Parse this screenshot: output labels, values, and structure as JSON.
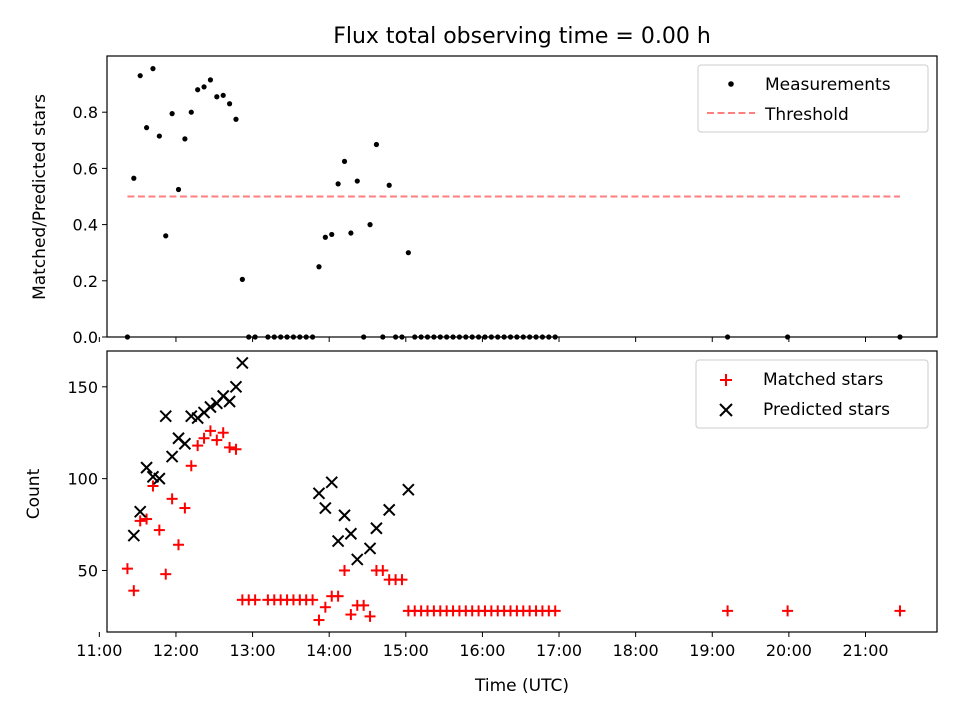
{
  "figure": {
    "title": "Flux total observing time = 0.00 h",
    "xlabel": "Time (UTC)"
  },
  "chart_data": [
    {
      "type": "scatter",
      "ylabel": "Matched/Predicted stars",
      "xlim": [
        "11:06",
        "21:56"
      ],
      "ylim": [
        0,
        1.0
      ],
      "yticks": [
        0.0,
        0.2,
        0.4,
        0.6,
        0.8
      ],
      "ytick_labels": [
        "0.0",
        "0.2",
        "0.4",
        "0.6",
        "0.8"
      ],
      "legend": {
        "position": "top-right",
        "entries": [
          "Measurements",
          "Threshold"
        ]
      },
      "series": [
        {
          "name": "Measurements",
          "color": "#000000",
          "marker": "dot",
          "points": [
            [
              "11:22",
              0.0
            ],
            [
              "11:27",
              0.565
            ],
            [
              "11:32",
              0.93
            ],
            [
              "11:37",
              0.745
            ],
            [
              "11:42",
              0.955
            ],
            [
              "11:47",
              0.715
            ],
            [
              "11:52",
              0.36
            ],
            [
              "11:57",
              0.795
            ],
            [
              "12:02",
              0.525
            ],
            [
              "12:07",
              0.705
            ],
            [
              "12:12",
              0.8
            ],
            [
              "12:17",
              0.88
            ],
            [
              "12:22",
              0.89
            ],
            [
              "12:27",
              0.915
            ],
            [
              "12:32",
              0.855
            ],
            [
              "12:37",
              0.86
            ],
            [
              "12:42",
              0.83
            ],
            [
              "12:47",
              0.775
            ],
            [
              "12:52",
              0.205
            ],
            [
              "12:57",
              0.0
            ],
            [
              "13:02",
              0.0
            ],
            [
              "13:12",
              0.0
            ],
            [
              "13:17",
              0.0
            ],
            [
              "13:22",
              0.0
            ],
            [
              "13:27",
              0.0
            ],
            [
              "13:32",
              0.0
            ],
            [
              "13:37",
              0.0
            ],
            [
              "13:42",
              0.0
            ],
            [
              "13:47",
              0.0
            ],
            [
              "13:52",
              0.25
            ],
            [
              "13:57",
              0.355
            ],
            [
              "14:02",
              0.365
            ],
            [
              "14:07",
              0.545
            ],
            [
              "14:12",
              0.625
            ],
            [
              "14:17",
              0.37
            ],
            [
              "14:22",
              0.555
            ],
            [
              "14:27",
              0.0
            ],
            [
              "14:32",
              0.4
            ],
            [
              "14:37",
              0.685
            ],
            [
              "14:42",
              0.0
            ],
            [
              "14:47",
              0.54
            ],
            [
              "14:52",
              0.0
            ],
            [
              "14:57",
              0.0
            ],
            [
              "15:02",
              0.3
            ],
            [
              "15:07",
              0.0
            ],
            [
              "15:12",
              0.0
            ],
            [
              "15:17",
              0.0
            ],
            [
              "15:22",
              0.0
            ],
            [
              "15:27",
              0.0
            ],
            [
              "15:32",
              0.0
            ],
            [
              "15:37",
              0.0
            ],
            [
              "15:42",
              0.0
            ],
            [
              "15:47",
              0.0
            ],
            [
              "15:52",
              0.0
            ],
            [
              "15:57",
              0.0
            ],
            [
              "16:02",
              0.0
            ],
            [
              "16:07",
              0.0
            ],
            [
              "16:12",
              0.0
            ],
            [
              "16:17",
              0.0
            ],
            [
              "16:22",
              0.0
            ],
            [
              "16:27",
              0.0
            ],
            [
              "16:32",
              0.0
            ],
            [
              "16:37",
              0.0
            ],
            [
              "16:42",
              0.0
            ],
            [
              "16:47",
              0.0
            ],
            [
              "16:52",
              0.0
            ],
            [
              "16:57",
              0.0
            ],
            [
              "19:12",
              0.0
            ],
            [
              "19:59",
              0.0
            ],
            [
              "21:27",
              0.0
            ]
          ]
        },
        {
          "name": "Threshold",
          "type": "line",
          "color": "#ff7f7f",
          "dash": "dashed",
          "points": [
            [
              "11:22",
              0.5
            ],
            [
              "21:27",
              0.5
            ]
          ]
        }
      ]
    },
    {
      "type": "scatter",
      "ylabel": "Count",
      "xlim": [
        "11:06",
        "21:56"
      ],
      "ylim": [
        16.5,
        169.5
      ],
      "yticks": [
        50,
        100,
        150
      ],
      "ytick_labels": [
        "50",
        "100",
        "150"
      ],
      "xticks": [
        "11:00",
        "12:00",
        "13:00",
        "14:00",
        "15:00",
        "16:00",
        "17:00",
        "18:00",
        "19:00",
        "20:00",
        "21:00"
      ],
      "legend": {
        "position": "top-right",
        "entries": [
          "Matched stars",
          "Predicted stars"
        ]
      },
      "series": [
        {
          "name": "Matched stars",
          "color": "#ff0000",
          "marker": "plus",
          "points": [
            [
              "11:22",
              51
            ],
            [
              "11:27",
              39
            ],
            [
              "11:32",
              77
            ],
            [
              "11:37",
              78
            ],
            [
              "11:42",
              96
            ],
            [
              "11:47",
              72
            ],
            [
              "11:52",
              48
            ],
            [
              "11:57",
              89
            ],
            [
              "12:02",
              64
            ],
            [
              "12:07",
              84
            ],
            [
              "12:12",
              107
            ],
            [
              "12:17",
              118
            ],
            [
              "12:22",
              122
            ],
            [
              "12:27",
              126
            ],
            [
              "12:32",
              121
            ],
            [
              "12:37",
              125
            ],
            [
              "12:42",
              117
            ],
            [
              "12:47",
              116
            ],
            [
              "12:52",
              34
            ],
            [
              "12:57",
              34
            ],
            [
              "13:02",
              34
            ],
            [
              "13:12",
              34
            ],
            [
              "13:17",
              34
            ],
            [
              "13:22",
              34
            ],
            [
              "13:27",
              34
            ],
            [
              "13:32",
              34
            ],
            [
              "13:37",
              34
            ],
            [
              "13:42",
              34
            ],
            [
              "13:47",
              34
            ],
            [
              "13:52",
              23
            ],
            [
              "13:57",
              30
            ],
            [
              "14:02",
              36
            ],
            [
              "14:07",
              36
            ],
            [
              "14:12",
              50
            ],
            [
              "14:17",
              26
            ],
            [
              "14:22",
              31
            ],
            [
              "14:27",
              31
            ],
            [
              "14:32",
              25
            ],
            [
              "14:37",
              50
            ],
            [
              "14:42",
              50
            ],
            [
              "14:47",
              45
            ],
            [
              "14:52",
              45
            ],
            [
              "14:57",
              45
            ],
            [
              "15:02",
              28
            ],
            [
              "15:07",
              28
            ],
            [
              "15:12",
              28
            ],
            [
              "15:17",
              28
            ],
            [
              "15:22",
              28
            ],
            [
              "15:27",
              28
            ],
            [
              "15:32",
              28
            ],
            [
              "15:37",
              28
            ],
            [
              "15:42",
              28
            ],
            [
              "15:47",
              28
            ],
            [
              "15:52",
              28
            ],
            [
              "15:57",
              28
            ],
            [
              "16:02",
              28
            ],
            [
              "16:07",
              28
            ],
            [
              "16:12",
              28
            ],
            [
              "16:17",
              28
            ],
            [
              "16:22",
              28
            ],
            [
              "16:27",
              28
            ],
            [
              "16:32",
              28
            ],
            [
              "16:37",
              28
            ],
            [
              "16:42",
              28
            ],
            [
              "16:47",
              28
            ],
            [
              "16:52",
              28
            ],
            [
              "16:57",
              28
            ],
            [
              "19:12",
              28
            ],
            [
              "19:59",
              28
            ],
            [
              "21:27",
              28
            ]
          ]
        },
        {
          "name": "Predicted stars",
          "color": "#000000",
          "marker": "x",
          "points": [
            [
              "11:27",
              69
            ],
            [
              "11:32",
              82
            ],
            [
              "11:37",
              106
            ],
            [
              "11:42",
              101
            ],
            [
              "11:47",
              100
            ],
            [
              "11:52",
              134
            ],
            [
              "11:57",
              112
            ],
            [
              "12:02",
              122
            ],
            [
              "12:07",
              119
            ],
            [
              "12:12",
              134
            ],
            [
              "12:17",
              133
            ],
            [
              "12:22",
              136
            ],
            [
              "12:27",
              139
            ],
            [
              "12:32",
              141
            ],
            [
              "12:37",
              145
            ],
            [
              "12:42",
              142
            ],
            [
              "12:47",
              150
            ],
            [
              "12:52",
              163
            ],
            [
              "13:52",
              92
            ],
            [
              "13:57",
              84
            ],
            [
              "14:02",
              98
            ],
            [
              "14:07",
              66
            ],
            [
              "14:12",
              80
            ],
            [
              "14:17",
              70
            ],
            [
              "14:22",
              56
            ],
            [
              "14:32",
              62
            ],
            [
              "14:37",
              73
            ],
            [
              "14:47",
              83
            ],
            [
              "15:02",
              94
            ]
          ]
        }
      ]
    }
  ]
}
